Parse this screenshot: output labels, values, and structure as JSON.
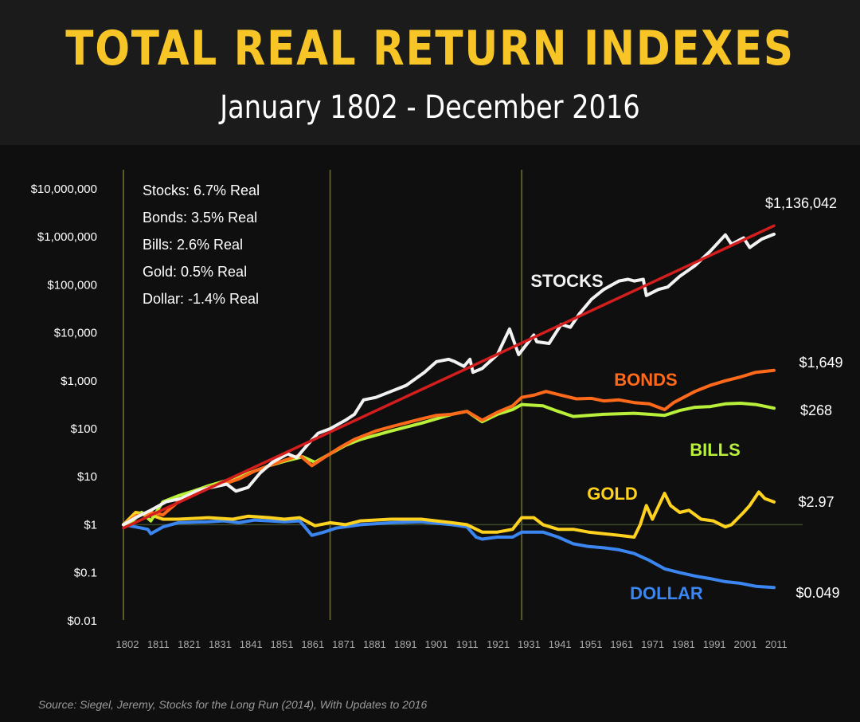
{
  "header": {
    "title": "TOTAL REAL RETURN INDEXES",
    "subtitle": "January 1802 - December 2016"
  },
  "source": "Source: Siegel, Jeremy, Stocks for the Long Run (2014), With Updates to 2016",
  "colors": {
    "stocks": "#f2f2f2",
    "bonds": "#ff6a1a",
    "bills": "#b9f03a",
    "gold": "#ffd21f",
    "dollar": "#3b86f0",
    "trend": "#d41e1e",
    "gridline": "#5a5a2a",
    "baseline": "#3d4a2a"
  },
  "chart_data": {
    "type": "line",
    "y_scale": "log",
    "ylim": [
      0.01,
      10000000
    ],
    "xlim": [
      1802,
      2016
    ],
    "y_ticks": [
      {
        "value": 10000000,
        "label": "$10,000,000"
      },
      {
        "value": 1000000,
        "label": "$1,000,000"
      },
      {
        "value": 100000,
        "label": "$100,000"
      },
      {
        "value": 10000,
        "label": "$10,000"
      },
      {
        "value": 1000,
        "label": "$1,000"
      },
      {
        "value": 100,
        "label": "$100"
      },
      {
        "value": 10,
        "label": "$10"
      },
      {
        "value": 1,
        "label": "$1"
      },
      {
        "value": 0.1,
        "label": "$0.1"
      },
      {
        "value": 0.01,
        "label": "$0.01"
      }
    ],
    "x_ticks": [
      "1802",
      "1811",
      "1821",
      "1831",
      "1841",
      "1851",
      "1861",
      "1871",
      "1881",
      "1891",
      "1901",
      "1911",
      "1921",
      "1931",
      "1941",
      "1951",
      "1961",
      "1971",
      "1981",
      "1991",
      "2001",
      "2011"
    ],
    "vertical_lines": [
      1802,
      1870,
      1933
    ],
    "legend_box": {
      "position": "top-left",
      "lines": [
        "Stocks: 6.7% Real",
        "Bonds: 3.5% Real",
        "Bills: 2.6% Real",
        "Gold: 0.5% Real",
        "Dollar: -1.4% Real"
      ]
    },
    "series": [
      {
        "name": "STOCKS",
        "color_key": "stocks",
        "end_label": "$1,136,042",
        "points": [
          [
            1802,
            1
          ],
          [
            1806,
            1.4
          ],
          [
            1811,
            2
          ],
          [
            1816,
            3
          ],
          [
            1821,
            3.5
          ],
          [
            1826,
            5
          ],
          [
            1831,
            6
          ],
          [
            1836,
            7
          ],
          [
            1839,
            5
          ],
          [
            1843,
            6
          ],
          [
            1847,
            12
          ],
          [
            1851,
            20
          ],
          [
            1856,
            30
          ],
          [
            1859,
            25
          ],
          [
            1863,
            50
          ],
          [
            1866,
            80
          ],
          [
            1870,
            100
          ],
          [
            1875,
            150
          ],
          [
            1878,
            200
          ],
          [
            1881,
            400
          ],
          [
            1885,
            450
          ],
          [
            1890,
            600
          ],
          [
            1895,
            800
          ],
          [
            1901,
            1500
          ],
          [
            1905,
            2500
          ],
          [
            1909,
            2800
          ],
          [
            1911,
            2500
          ],
          [
            1914,
            2000
          ],
          [
            1916,
            2800
          ],
          [
            1917,
            1500
          ],
          [
            1920,
            1800
          ],
          [
            1925,
            3500
          ],
          [
            1929,
            12000
          ],
          [
            1932,
            3500
          ],
          [
            1937,
            9000
          ],
          [
            1938,
            6500
          ],
          [
            1942,
            6000
          ],
          [
            1946,
            15000
          ],
          [
            1949,
            13000
          ],
          [
            1952,
            25000
          ],
          [
            1956,
            50000
          ],
          [
            1960,
            80000
          ],
          [
            1965,
            120000
          ],
          [
            1968,
            130000
          ],
          [
            1970,
            120000
          ],
          [
            1973,
            130000
          ],
          [
            1974,
            60000
          ],
          [
            1978,
            80000
          ],
          [
            1981,
            90000
          ],
          [
            1985,
            150000
          ],
          [
            1990,
            250000
          ],
          [
            1995,
            500000
          ],
          [
            2000,
            1100000
          ],
          [
            2002,
            700000
          ],
          [
            2006,
            950000
          ],
          [
            2008,
            600000
          ],
          [
            2012,
            900000
          ],
          [
            2016,
            1136042
          ]
        ]
      },
      {
        "name": "BONDS",
        "color_key": "bonds",
        "end_label": "$1,649",
        "points": [
          [
            1802,
            1
          ],
          [
            1806,
            1.5
          ],
          [
            1811,
            1.8
          ],
          [
            1815,
            1.6
          ],
          [
            1820,
            3
          ],
          [
            1825,
            4.5
          ],
          [
            1830,
            6
          ],
          [
            1835,
            7
          ],
          [
            1840,
            9
          ],
          [
            1845,
            13
          ],
          [
            1850,
            17
          ],
          [
            1855,
            22
          ],
          [
            1860,
            28
          ],
          [
            1864,
            17
          ],
          [
            1868,
            25
          ],
          [
            1873,
            40
          ],
          [
            1878,
            60
          ],
          [
            1885,
            90
          ],
          [
            1890,
            110
          ],
          [
            1900,
            160
          ],
          [
            1905,
            190
          ],
          [
            1910,
            200
          ],
          [
            1915,
            230
          ],
          [
            1920,
            150
          ],
          [
            1925,
            220
          ],
          [
            1930,
            300
          ],
          [
            1933,
            450
          ],
          [
            1937,
            500
          ],
          [
            1941,
            600
          ],
          [
            1946,
            500
          ],
          [
            1951,
            420
          ],
          [
            1956,
            430
          ],
          [
            1960,
            380
          ],
          [
            1965,
            400
          ],
          [
            1970,
            350
          ],
          [
            1975,
            330
          ],
          [
            1980,
            250
          ],
          [
            1983,
            350
          ],
          [
            1990,
            600
          ],
          [
            1995,
            800
          ],
          [
            2000,
            1000
          ],
          [
            2005,
            1200
          ],
          [
            2010,
            1500
          ],
          [
            2016,
            1649
          ]
        ]
      },
      {
        "name": "BILLS",
        "color_key": "bills",
        "end_label": "$268",
        "points": [
          [
            1802,
            1
          ],
          [
            1805,
            1.2
          ],
          [
            1808,
            1.8
          ],
          [
            1811,
            1.2
          ],
          [
            1815,
            3
          ],
          [
            1820,
            4
          ],
          [
            1825,
            5
          ],
          [
            1830,
            6.5
          ],
          [
            1835,
            8
          ],
          [
            1840,
            10
          ],
          [
            1845,
            13
          ],
          [
            1850,
            17
          ],
          [
            1855,
            21
          ],
          [
            1861,
            26
          ],
          [
            1865,
            20
          ],
          [
            1870,
            30
          ],
          [
            1875,
            45
          ],
          [
            1880,
            60
          ],
          [
            1890,
            90
          ],
          [
            1900,
            130
          ],
          [
            1910,
            200
          ],
          [
            1915,
            230
          ],
          [
            1920,
            140
          ],
          [
            1925,
            200
          ],
          [
            1930,
            250
          ],
          [
            1933,
            320
          ],
          [
            1940,
            300
          ],
          [
            1945,
            230
          ],
          [
            1950,
            180
          ],
          [
            1955,
            190
          ],
          [
            1960,
            200
          ],
          [
            1970,
            210
          ],
          [
            1975,
            200
          ],
          [
            1980,
            190
          ],
          [
            1985,
            240
          ],
          [
            1990,
            280
          ],
          [
            1995,
            290
          ],
          [
            2000,
            330
          ],
          [
            2005,
            340
          ],
          [
            2010,
            320
          ],
          [
            2016,
            268
          ]
        ]
      },
      {
        "name": "GOLD",
        "color_key": "gold",
        "end_label": "$2.97",
        "points": [
          [
            1802,
            1
          ],
          [
            1806,
            1.8
          ],
          [
            1811,
            1.6
          ],
          [
            1815,
            1.3
          ],
          [
            1820,
            1.3
          ],
          [
            1830,
            1.4
          ],
          [
            1838,
            1.3
          ],
          [
            1843,
            1.5
          ],
          [
            1850,
            1.4
          ],
          [
            1855,
            1.3
          ],
          [
            1860,
            1.4
          ],
          [
            1865,
            0.95
          ],
          [
            1870,
            1.1
          ],
          [
            1875,
            1.0
          ],
          [
            1880,
            1.2
          ],
          [
            1890,
            1.3
          ],
          [
            1900,
            1.3
          ],
          [
            1910,
            1.1
          ],
          [
            1915,
            1.0
          ],
          [
            1920,
            0.7
          ],
          [
            1925,
            0.7
          ],
          [
            1930,
            0.8
          ],
          [
            1933,
            1.4
          ],
          [
            1937,
            1.4
          ],
          [
            1940,
            1.0
          ],
          [
            1945,
            0.8
          ],
          [
            1950,
            0.8
          ],
          [
            1955,
            0.7
          ],
          [
            1960,
            0.65
          ],
          [
            1965,
            0.6
          ],
          [
            1970,
            0.55
          ],
          [
            1972,
            1.0
          ],
          [
            1974,
            2.5
          ],
          [
            1976,
            1.3
          ],
          [
            1980,
            4.5
          ],
          [
            1982,
            2.5
          ],
          [
            1985,
            1.8
          ],
          [
            1988,
            2.0
          ],
          [
            1992,
            1.3
          ],
          [
            1996,
            1.2
          ],
          [
            2000,
            0.9
          ],
          [
            2002,
            1.0
          ],
          [
            2006,
            1.8
          ],
          [
            2008,
            2.5
          ],
          [
            2011,
            4.8
          ],
          [
            2013,
            3.5
          ],
          [
            2016,
            2.97
          ]
        ]
      },
      {
        "name": "DOLLAR",
        "color_key": "dollar",
        "end_label": "$0.049",
        "points": [
          [
            1802,
            1
          ],
          [
            1806,
            0.9
          ],
          [
            1810,
            0.8
          ],
          [
            1811,
            0.65
          ],
          [
            1815,
            0.9
          ],
          [
            1820,
            1.1
          ],
          [
            1830,
            1.15
          ],
          [
            1835,
            1.2
          ],
          [
            1840,
            1.1
          ],
          [
            1845,
            1.25
          ],
          [
            1850,
            1.2
          ],
          [
            1855,
            1.15
          ],
          [
            1860,
            1.2
          ],
          [
            1864,
            0.6
          ],
          [
            1868,
            0.7
          ],
          [
            1872,
            0.85
          ],
          [
            1880,
            1.0
          ],
          [
            1890,
            1.1
          ],
          [
            1900,
            1.15
          ],
          [
            1910,
            1.0
          ],
          [
            1915,
            0.9
          ],
          [
            1918,
            0.55
          ],
          [
            1920,
            0.5
          ],
          [
            1925,
            0.55
          ],
          [
            1930,
            0.55
          ],
          [
            1933,
            0.7
          ],
          [
            1940,
            0.7
          ],
          [
            1945,
            0.55
          ],
          [
            1950,
            0.4
          ],
          [
            1955,
            0.35
          ],
          [
            1960,
            0.33
          ],
          [
            1965,
            0.3
          ],
          [
            1970,
            0.25
          ],
          [
            1975,
            0.18
          ],
          [
            1980,
            0.12
          ],
          [
            1985,
            0.1
          ],
          [
            1990,
            0.085
          ],
          [
            1995,
            0.075
          ],
          [
            2000,
            0.065
          ],
          [
            2005,
            0.06
          ],
          [
            2010,
            0.052
          ],
          [
            2016,
            0.049
          ]
        ]
      },
      {
        "name": "",
        "color_key": "trend",
        "trend": true,
        "points": [
          [
            1802,
            0.85
          ],
          [
            2016,
            1700000
          ]
        ]
      }
    ]
  }
}
